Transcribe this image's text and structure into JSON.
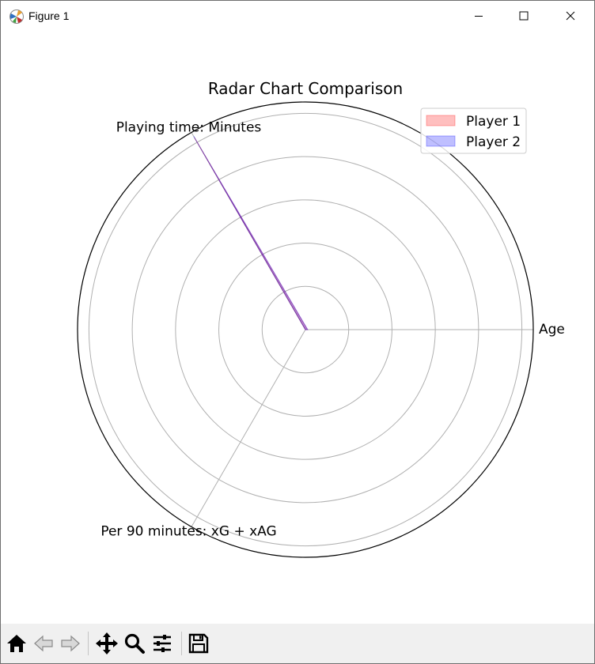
{
  "window": {
    "title": "Figure 1",
    "icon": "matplotlib-icon",
    "controls": [
      "minimize-icon",
      "maximize-icon",
      "close-icon"
    ]
  },
  "chart_data": {
    "type": "radar",
    "title": "Radar Chart Comparison",
    "axes": [
      "Age",
      "Playing time: Minutes",
      "Per 90 minutes: xG + xAG"
    ],
    "rlim": [
      0,
      2570
    ],
    "grid": true,
    "legend_position": "top-right",
    "series": [
      {
        "name": "Player 1",
        "values": [
          24,
          2500,
          0.45
        ],
        "color": "#ff0000",
        "alpha": 0.25
      },
      {
        "name": "Player 2",
        "values": [
          26,
          2520,
          0.6
        ],
        "color": "#0000ff",
        "alpha": 0.25
      }
    ]
  },
  "toolbar": {
    "buttons": [
      {
        "name": "home-icon"
      },
      {
        "name": "back-icon"
      },
      {
        "name": "forward-icon"
      },
      {
        "name": "pan-icon"
      },
      {
        "name": "zoom-icon"
      },
      {
        "name": "configure-subplots-icon"
      },
      {
        "name": "save-icon"
      }
    ]
  }
}
